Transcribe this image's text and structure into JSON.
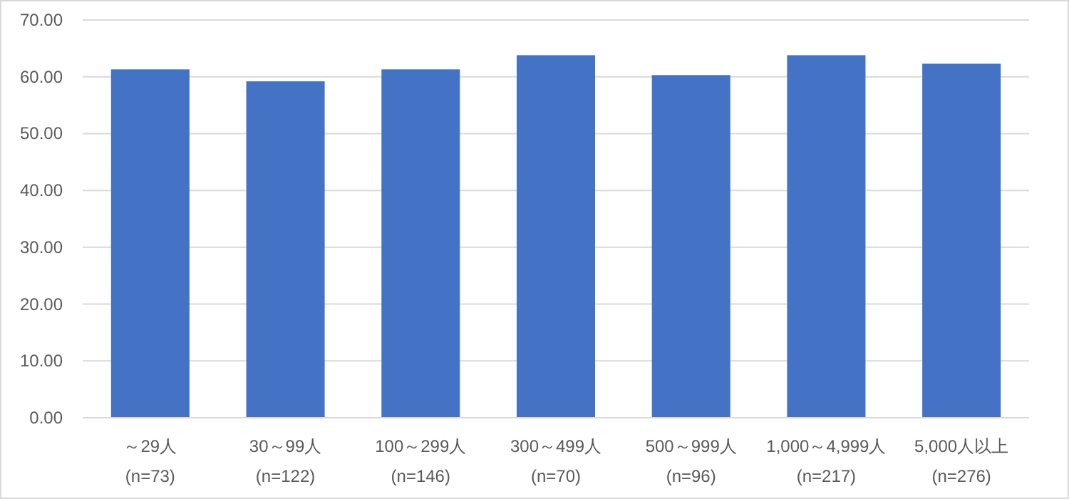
{
  "chart_data": {
    "type": "bar",
    "categories": [
      "～29人\n(n=73)",
      "30～99人\n(n=122)",
      "100～299人\n(n=146)",
      "300～499人\n(n=70)",
      "500～999人\n(n=96)",
      "1,000～4,999人\n(n=217)",
      "5,000人以上\n(n=276)"
    ],
    "values": [
      61.3,
      59.2,
      61.3,
      63.8,
      60.3,
      63.8,
      62.3
    ],
    "color": "#4472c4",
    "ylim": [
      0,
      70
    ],
    "yticks": [
      {
        "value": 0,
        "label": "0.00"
      },
      {
        "value": 10,
        "label": "10.00"
      },
      {
        "value": 20,
        "label": "20.00"
      },
      {
        "value": 30,
        "label": "30.00"
      },
      {
        "value": 40,
        "label": "40.00"
      },
      {
        "value": 50,
        "label": "50.00"
      },
      {
        "value": 60,
        "label": "60.00"
      },
      {
        "value": 70,
        "label": "70.00"
      }
    ],
    "grid": "y"
  }
}
